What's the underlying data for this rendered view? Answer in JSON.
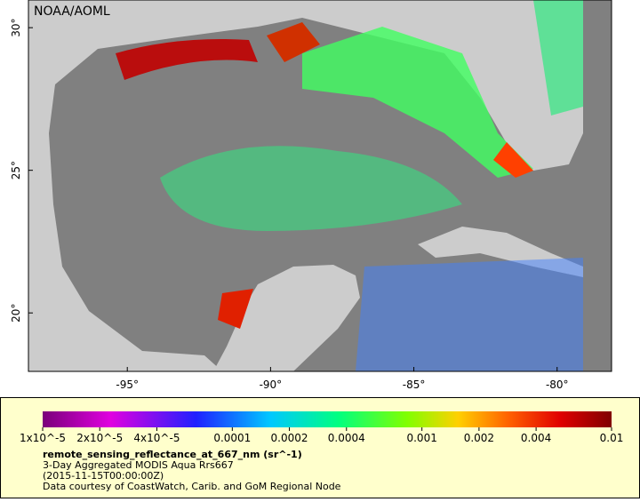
{
  "map": {
    "credit": "NOAA/AOML",
    "lonlim": [
      -98.45,
      -78.1
    ],
    "latlim": [
      17.95,
      30.97
    ],
    "lon_ticks": [
      {
        "value": -95,
        "label": "-95°"
      },
      {
        "value": -90,
        "label": "-90°"
      },
      {
        "value": -85,
        "label": "-85°"
      },
      {
        "value": -80,
        "label": "-80°"
      }
    ],
    "lat_ticks": [
      {
        "value": 30,
        "label": "30°"
      },
      {
        "value": 25,
        "label": "25°"
      },
      {
        "value": 20,
        "label": "20°"
      }
    ]
  },
  "legend": {
    "log_scale": true,
    "lim": [
      1e-05,
      0.01
    ],
    "ticks": [
      {
        "value": 1e-05,
        "label": "1x10^-5"
      },
      {
        "value": 2e-05,
        "label": "2x10^-5"
      },
      {
        "value": 4e-05,
        "label": "4x10^-5"
      },
      0.0001,
      0.0002,
      0.0004,
      0.001,
      0.002,
      0.004,
      0.01
    ],
    "variable": "remote_sensing_reflectance_at_667_nm (sr^-1)",
    "description": "3-Day Aggregated MODIS Aqua Rrs667",
    "time": "(2015-11-15T00:00:00Z)",
    "source": "Data courtesy of CoastWatch, Carib. and GoM Regional Node"
  }
}
